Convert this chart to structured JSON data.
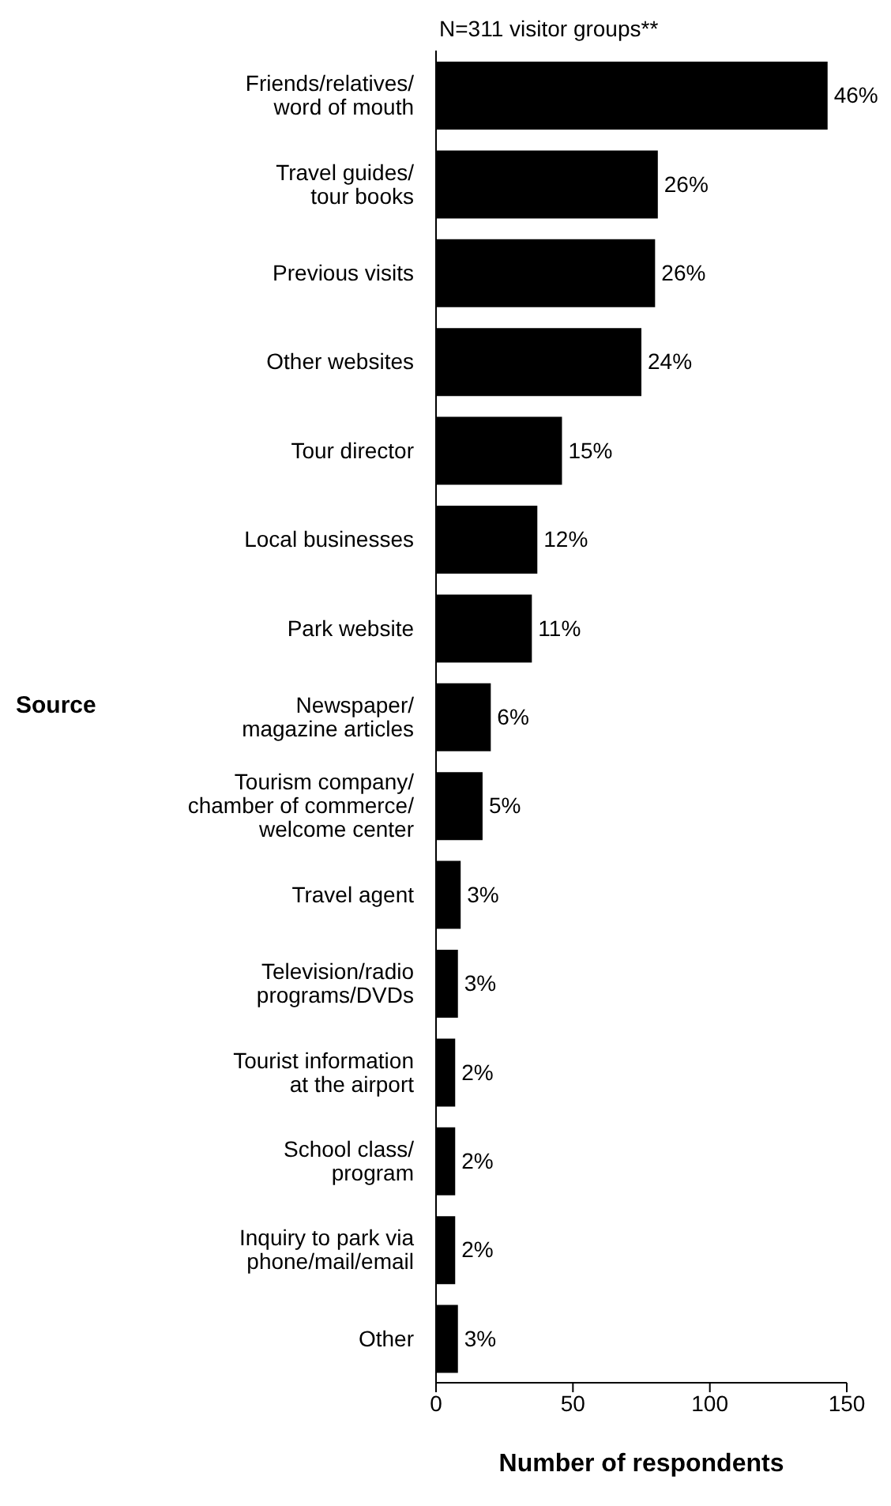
{
  "chart_data": {
    "type": "bar",
    "orientation": "horizontal",
    "title": "N=311 visitor groups**",
    "xlabel": "Number of respondents",
    "ylabel": "Source",
    "categories": [
      "Friends/relatives/\nword of mouth",
      "Travel guides/\ntour books",
      "Previous visits",
      "Other websites",
      "Tour director",
      "Local businesses",
      "Park website",
      "Newspaper/\nmagazine articles",
      "Tourism company/\nchamber of commerce/\nwelcome center",
      "Travel agent",
      "Television/radio\nprograms/DVDs",
      "Tourist information\nat the airport",
      "School class/\nprogram",
      "Inquiry to park via\nphone/mail/email",
      "Other"
    ],
    "values": [
      143,
      81,
      80,
      75,
      46,
      37,
      35,
      20,
      17,
      9,
      8,
      7,
      7,
      7,
      8
    ],
    "annotations": [
      {
        "text": "46%",
        "x": 143,
        "y": "Friends/relatives/\nword of mouth"
      },
      {
        "text": "26%",
        "x": 81,
        "y": "Travel guides/\ntour books"
      },
      {
        "text": "26%",
        "x": 80,
        "y": "Previous visits"
      },
      {
        "text": "24%",
        "x": 75,
        "y": "Other websites"
      },
      {
        "text": "15%",
        "x": 46,
        "y": "Tour director"
      },
      {
        "text": "12%",
        "x": 37,
        "y": "Local businesses"
      },
      {
        "text": "11%",
        "x": 35,
        "y": "Park website"
      },
      {
        "text": "6%",
        "x": 20,
        "y": "Newspaper/\nmagazine articles"
      },
      {
        "text": "5%",
        "x": 17,
        "y": "Tourism company/\nchamber of commerce/\nwelcome center"
      },
      {
        "text": "3%",
        "x": 9,
        "y": "Travel agent"
      },
      {
        "text": "3%",
        "x": 8,
        "y": "Television/radio\nprograms/DVDs"
      },
      {
        "text": "2%",
        "x": 7,
        "y": "Tourist information\nat the airport"
      },
      {
        "text": "2%",
        "x": 7,
        "y": "School class/\nprogram"
      },
      {
        "text": "2%",
        "x": 7,
        "y": "Inquiry to park via\nphone/mail/email"
      },
      {
        "text": "3%",
        "x": 8,
        "y": "Other"
      }
    ],
    "color": "#000000",
    "xlim": [
      0,
      150
    ],
    "xticks": [
      0,
      50,
      100,
      150
    ],
    "grid": false,
    "legend": false
  }
}
